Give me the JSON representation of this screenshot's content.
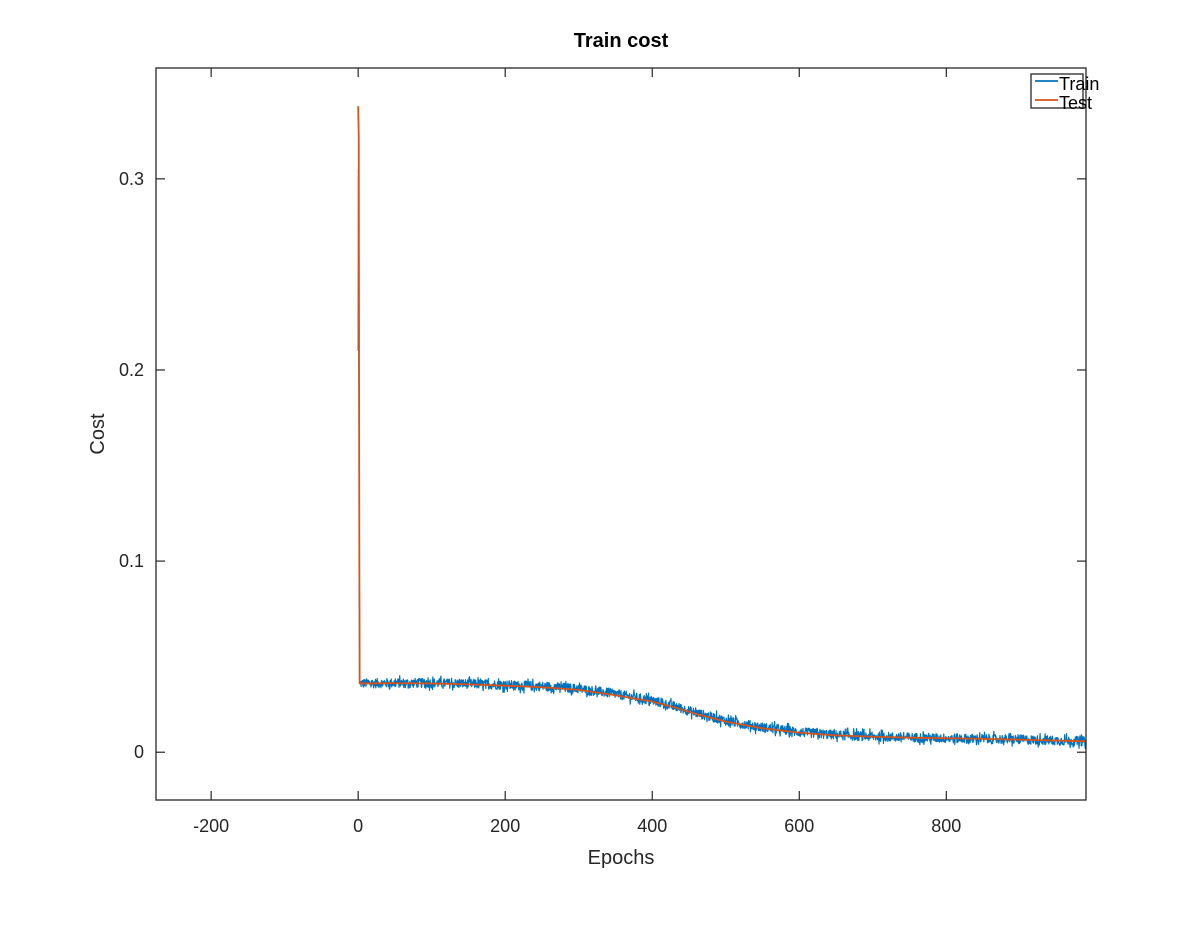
{
  "chart_data": {
    "type": "line",
    "title": "Train cost",
    "xlabel": "Epochs",
    "ylabel": "Cost",
    "xlim": [
      -275,
      990
    ],
    "ylim": [
      -0.025,
      0.358
    ],
    "xticks": [
      -200,
      0,
      200,
      400,
      600,
      800
    ],
    "xtick_labels": [
      "-200",
      "0",
      "200",
      "400",
      "600",
      "800"
    ],
    "yticks": [
      0,
      0.1,
      0.2,
      0.3
    ],
    "ytick_labels": [
      "0",
      "0.1",
      "0.2",
      "0.3"
    ],
    "grid": false,
    "legend_position": "top-right",
    "series": [
      {
        "name": "Train",
        "color": "#0072BD",
        "noise": 0.0025,
        "points": [
          [
            0,
            0.21
          ],
          [
            0.3,
            0.305
          ],
          [
            0.6,
            0.25
          ],
          [
            1,
            0.2
          ],
          [
            1.5,
            0.12
          ],
          [
            2,
            0.036
          ],
          [
            50,
            0.0362
          ],
          [
            100,
            0.0362
          ],
          [
            150,
            0.0358
          ],
          [
            200,
            0.0352
          ],
          [
            250,
            0.0345
          ],
          [
            300,
            0.0332
          ],
          [
            350,
            0.0305
          ],
          [
            400,
            0.027
          ],
          [
            430,
            0.024
          ],
          [
            460,
            0.0205
          ],
          [
            500,
            0.0165
          ],
          [
            550,
            0.013
          ],
          [
            600,
            0.0105
          ],
          [
            650,
            0.009
          ],
          [
            700,
            0.0082
          ],
          [
            750,
            0.0077
          ],
          [
            800,
            0.0073
          ],
          [
            850,
            0.007
          ],
          [
            900,
            0.0066
          ],
          [
            950,
            0.0061
          ],
          [
            990,
            0.0057
          ]
        ]
      },
      {
        "name": "Test",
        "color": "#D95319",
        "noise": 0,
        "points": [
          [
            0,
            0.338
          ],
          [
            0.4,
            0.33
          ],
          [
            0.8,
            0.322
          ],
          [
            1.2,
            0.2
          ],
          [
            1.6,
            0.1
          ],
          [
            2,
            0.036
          ],
          [
            50,
            0.0361
          ],
          [
            100,
            0.036
          ],
          [
            150,
            0.0355
          ],
          [
            200,
            0.0348
          ],
          [
            250,
            0.034
          ],
          [
            300,
            0.0326
          ],
          [
            350,
            0.0298
          ],
          [
            400,
            0.0265
          ],
          [
            430,
            0.0235
          ],
          [
            460,
            0.02
          ],
          [
            500,
            0.016
          ],
          [
            550,
            0.0125
          ],
          [
            600,
            0.0102
          ],
          [
            650,
            0.0088
          ],
          [
            700,
            0.0081
          ],
          [
            750,
            0.0076
          ],
          [
            800,
            0.0073
          ],
          [
            850,
            0.007
          ],
          [
            900,
            0.0066
          ],
          [
            950,
            0.0061
          ],
          [
            990,
            0.0057
          ]
        ]
      }
    ]
  }
}
